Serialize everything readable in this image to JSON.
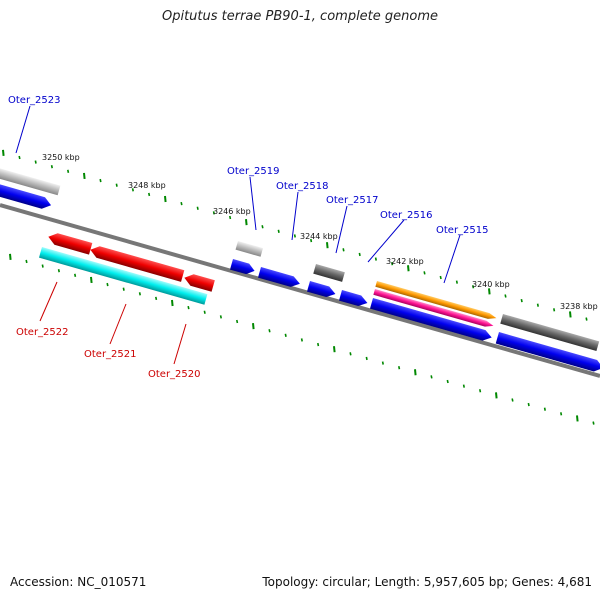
{
  "title": "Opitutus terrae PB90-1, complete genome",
  "accession": "Accession: NC_010571",
  "summary": "Topology: circular; Length: 5,957,605 bp; Genes: 4,681",
  "kbp_labels": [
    "3250 kbp",
    "3248 kbp",
    "3246 kbp",
    "3244 kbp",
    "3242 kbp",
    "3240 kbp",
    "3238 kbp"
  ],
  "gene_labels": {
    "oter_2523": "Oter_2523",
    "oter_2519": "Oter_2519",
    "oter_2518": "Oter_2518",
    "oter_2517": "Oter_2517",
    "oter_2516": "Oter_2516",
    "oter_2515": "Oter_2515",
    "oter_2522": "Oter_2522",
    "oter_2521": "Oter_2521",
    "oter_2520": "Oter_2520"
  },
  "colors": {
    "forward_label": "#0000cc",
    "reverse_label": "#cc0000",
    "cds_blue": "#0000ee",
    "cds_red": "#ee0000",
    "cds_cyan": "#00eeee",
    "gray_light": "#bbbbbb",
    "gray_dark": "#666666",
    "orange": "#ff9900",
    "magenta": "#ff1493",
    "tick_green": "#008800"
  }
}
